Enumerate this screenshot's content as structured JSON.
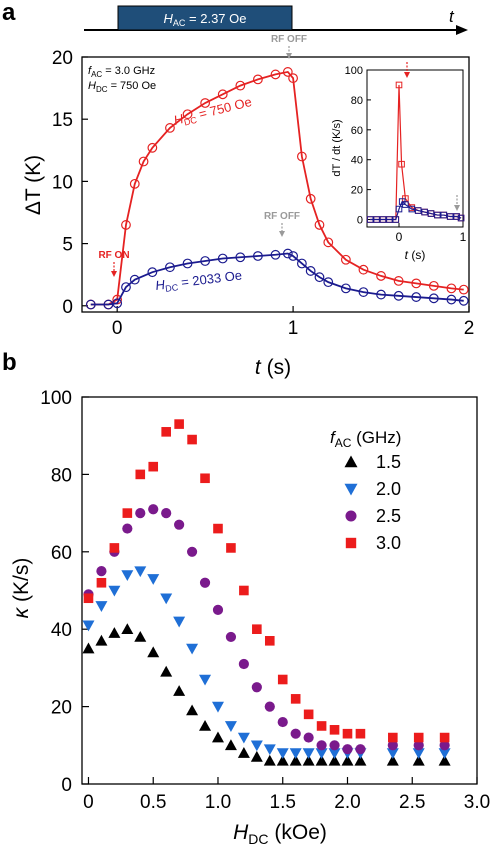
{
  "panel_a": {
    "label": "a",
    "timeline": {
      "pulse_label_sym": "H",
      "pulse_label_sub": "AC",
      "pulse_label_val": " = 2.37 Oe",
      "axis_label": "t"
    },
    "params": {
      "line1_sym": "f",
      "line1_sub": "AC",
      "line1_val": " = 3.0 GHz",
      "line2_sym": "H",
      "line2_sub": "DC",
      "line2_val": " = 750 Oe"
    },
    "annotations": {
      "rf_on": "RF ON",
      "rf_off_1": "RF OFF",
      "rf_off_2": "RF OFF",
      "curve_red_sym": "H",
      "curve_red_sub": "DC",
      "curve_red_val": " = 750 Oe",
      "curve_blue_sym": "H",
      "curve_blue_sub": "DC",
      "curve_blue_val": " = 2033 Oe"
    },
    "xlabel_sym": "t",
    "xlabel_unit": " (s)",
    "ylabel": "ΔT (K)",
    "inset": {
      "ylabel": "dT / dt (K/s)",
      "xlabel_sym": "t",
      "xlabel_unit": " (s)"
    },
    "colors": {
      "red": "#e52222",
      "blue": "#1b1b8f",
      "gray": "#9a9a9a",
      "pulse": "#1f4e79"
    }
  },
  "panel_b": {
    "label": "b",
    "xlabel_sym": "H",
    "xlabel_sub": "DC",
    "xlabel_unit": " (kOe)",
    "ylabel_sym": "κ",
    "ylabel_unit": " (K/s)",
    "legend_title_sym": "f",
    "legend_title_sub": "AC",
    "legend_title_unit": " (GHz)",
    "colors": {
      "s1.5": "#000000",
      "s2.0": "#1f6fd6",
      "s2.5": "#7a1a8c",
      "s3.0": "#ec1c1c"
    }
  },
  "chart_data": [
    {
      "type": "line",
      "xlim": [
        -0.2,
        2.0
      ],
      "ylim": [
        -0.5,
        20
      ],
      "xticks": [
        0,
        1,
        2
      ],
      "yticks": [
        0,
        5,
        10,
        15,
        20
      ],
      "series": [
        {
          "name": "HDC = 750 Oe",
          "x": [
            -0.15,
            -0.05,
            0,
            0.05,
            0.1,
            0.15,
            0.2,
            0.3,
            0.4,
            0.5,
            0.6,
            0.7,
            0.8,
            0.9,
            0.97,
            1.0,
            1.05,
            1.1,
            1.15,
            1.2,
            1.3,
            1.4,
            1.5,
            1.6,
            1.7,
            1.8,
            1.9,
            1.97
          ],
          "y": [
            0.1,
            0.1,
            0.5,
            6.5,
            9.8,
            11.6,
            12.7,
            14.3,
            15.4,
            16.3,
            17.0,
            17.7,
            18.2,
            18.6,
            18.8,
            18.3,
            12.0,
            8.6,
            6.5,
            5.1,
            3.7,
            2.9,
            2.4,
            2.0,
            1.8,
            1.6,
            1.4,
            1.3
          ]
        },
        {
          "name": "HDC = 2033 Oe",
          "x": [
            -0.15,
            -0.05,
            0,
            0.05,
            0.1,
            0.2,
            0.3,
            0.4,
            0.5,
            0.6,
            0.7,
            0.8,
            0.9,
            0.97,
            1.0,
            1.05,
            1.1,
            1.15,
            1.2,
            1.3,
            1.4,
            1.5,
            1.6,
            1.7,
            1.8,
            1.9,
            1.97
          ],
          "y": [
            0.1,
            0.1,
            0.2,
            1.5,
            2.1,
            2.7,
            3.1,
            3.4,
            3.6,
            3.8,
            3.9,
            4.0,
            4.1,
            4.2,
            4.0,
            3.4,
            2.8,
            2.3,
            1.9,
            1.4,
            1.1,
            0.9,
            0.8,
            0.7,
            0.6,
            0.5,
            0.4
          ]
        }
      ]
    },
    {
      "type": "line",
      "xlim": [
        -0.5,
        1.0
      ],
      "ylim": [
        -5,
        100
      ],
      "xticks": [
        0,
        1
      ],
      "yticks": [
        0,
        20,
        40,
        60,
        80,
        100
      ],
      "series": [
        {
          "name": "HDC = 750 Oe",
          "x": [
            -0.45,
            -0.35,
            -0.25,
            -0.15,
            -0.05,
            0,
            0.04,
            0.1,
            0.2,
            0.3,
            0.4,
            0.5,
            0.6,
            0.7,
            0.8,
            0.9,
            0.97
          ],
          "y": [
            0,
            0,
            0,
            0,
            0,
            90,
            37,
            14,
            8,
            6,
            5,
            4,
            3,
            3,
            2,
            2,
            1
          ]
        },
        {
          "name": "HDC = 2033 Oe",
          "x": [
            -0.45,
            -0.35,
            -0.25,
            -0.15,
            -0.05,
            0,
            0.05,
            0.1,
            0.2,
            0.3,
            0.4,
            0.5,
            0.6,
            0.7,
            0.8,
            0.9,
            0.97
          ],
          "y": [
            0,
            0,
            0,
            0,
            0,
            7,
            12,
            10,
            7,
            6,
            5,
            4,
            3,
            3,
            2,
            2,
            1
          ]
        }
      ]
    },
    {
      "type": "scatter",
      "xlim": [
        -0.05,
        3.0
      ],
      "ylim": [
        0,
        100
      ],
      "xticks": [
        0,
        0.5,
        1.0,
        1.5,
        2.0,
        2.5,
        3.0
      ],
      "yticks": [
        0,
        20,
        40,
        60,
        80,
        100
      ],
      "series": [
        {
          "name": "1.5",
          "marker": "triangle-up",
          "x": [
            0,
            0.1,
            0.2,
            0.3,
            0.4,
            0.5,
            0.6,
            0.7,
            0.8,
            0.9,
            1.0,
            1.1,
            1.2,
            1.3,
            1.4,
            1.5,
            1.6,
            1.7,
            1.8,
            1.9,
            2.0,
            2.1,
            2.35,
            2.55,
            2.75
          ],
          "y": [
            35,
            37,
            39,
            40,
            38,
            34,
            29,
            24,
            19,
            15,
            12,
            10,
            8,
            7,
            6,
            6,
            6,
            6,
            6,
            6,
            6,
            6,
            6,
            6,
            6
          ]
        },
        {
          "name": "2.0",
          "marker": "triangle-down",
          "x": [
            0,
            0.1,
            0.2,
            0.3,
            0.4,
            0.5,
            0.6,
            0.7,
            0.8,
            0.9,
            1.0,
            1.1,
            1.2,
            1.3,
            1.4,
            1.5,
            1.6,
            1.7,
            1.8,
            1.9,
            2.0,
            2.1,
            2.35,
            2.55,
            2.75
          ],
          "y": [
            41,
            46,
            50,
            54,
            55,
            53,
            48,
            42,
            35,
            27,
            20,
            15,
            12,
            10,
            9,
            8,
            8,
            8,
            8,
            8,
            8,
            8,
            8,
            8,
            8
          ]
        },
        {
          "name": "2.5",
          "marker": "circle",
          "x": [
            0,
            0.1,
            0.2,
            0.3,
            0.4,
            0.5,
            0.6,
            0.7,
            0.8,
            0.9,
            1.0,
            1.1,
            1.2,
            1.3,
            1.4,
            1.5,
            1.6,
            1.7,
            1.8,
            1.9,
            2.0,
            2.1,
            2.35,
            2.55,
            2.75
          ],
          "y": [
            49,
            55,
            60,
            66,
            70,
            71,
            70,
            67,
            60,
            52,
            45,
            38,
            31,
            25,
            20,
            16,
            13,
            12,
            10,
            10,
            9,
            9,
            10,
            10,
            10
          ]
        },
        {
          "name": "3.0",
          "marker": "square",
          "x": [
            0,
            0.1,
            0.2,
            0.3,
            0.4,
            0.5,
            0.6,
            0.7,
            0.8,
            0.9,
            1.0,
            1.1,
            1.2,
            1.3,
            1.4,
            1.5,
            1.6,
            1.7,
            1.8,
            1.9,
            2.0,
            2.1,
            2.35,
            2.55,
            2.75
          ],
          "y": [
            48,
            52,
            61,
            70,
            80,
            82,
            91,
            93,
            89,
            79,
            66,
            61,
            50,
            40,
            37,
            27,
            22,
            18,
            15,
            14,
            13,
            13,
            12,
            12,
            12
          ]
        }
      ]
    }
  ]
}
